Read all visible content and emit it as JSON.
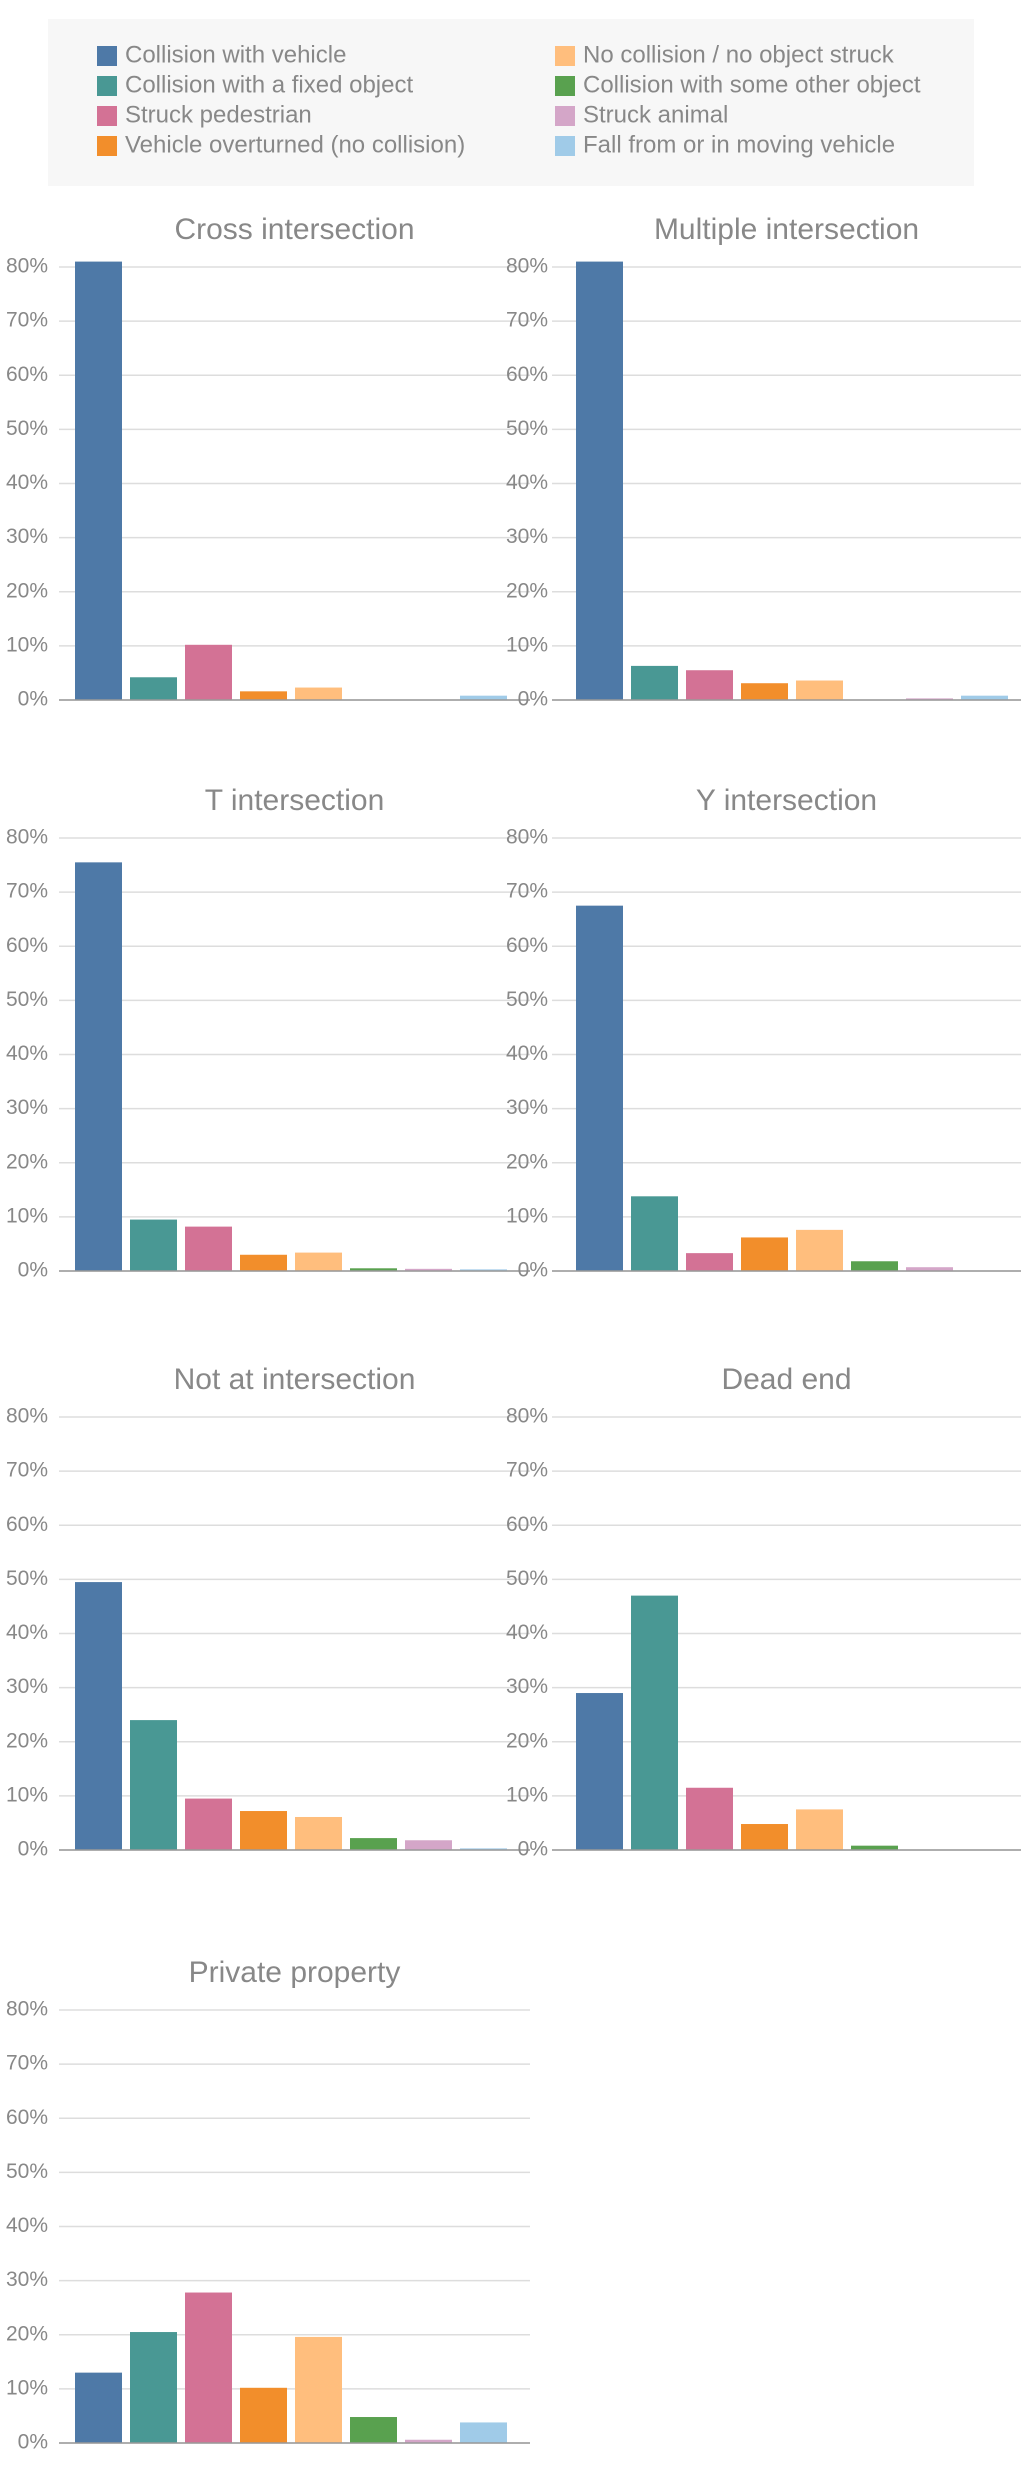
{
  "legend": {
    "items": [
      {
        "name": "Collision with vehicle",
        "color": "#4e79a7"
      },
      {
        "name": "Collision with a fixed object",
        "color": "#499894"
      },
      {
        "name": "Struck pedestrian",
        "color": "#d37295"
      },
      {
        "name": "Vehicle overturned (no collision)",
        "color": "#f28e2b"
      },
      {
        "name": "No collision / no object struck",
        "color": "#ffbe7d"
      },
      {
        "name": "Collision with some other object",
        "color": "#59a14f"
      },
      {
        "name": "Struck animal",
        "color": "#d4a6c8"
      },
      {
        "name": "Fall from or in moving vehicle",
        "color": "#a0cbe8"
      }
    ]
  },
  "chart_data": [
    {
      "type": "bar",
      "title": "Cross intersection",
      "values": [
        81,
        4.2,
        10.2,
        1.6,
        2.3,
        0,
        0,
        0.8
      ],
      "ylim": [
        0,
        80
      ],
      "yticks": [
        {
          "value": 0,
          "label": "0%"
        },
        {
          "value": 10,
          "label": "10%"
        },
        {
          "value": 20,
          "label": "20%"
        },
        {
          "value": 30,
          "label": "30%"
        },
        {
          "value": 40,
          "label": "40%"
        },
        {
          "value": 50,
          "label": "50%"
        },
        {
          "value": 60,
          "label": "60%"
        },
        {
          "value": 70,
          "label": "70%"
        },
        {
          "value": 80,
          "label": "80%"
        }
      ],
      "grid": true
    },
    {
      "type": "bar",
      "title": "Multiple intersection",
      "values": [
        81,
        6.3,
        5.5,
        3.1,
        3.6,
        0,
        0.3,
        0.8
      ],
      "ylim": [
        0,
        80
      ],
      "yticks": [
        {
          "value": 0,
          "label": "0%"
        },
        {
          "value": 10,
          "label": "10%"
        },
        {
          "value": 20,
          "label": "20%"
        },
        {
          "value": 30,
          "label": "30%"
        },
        {
          "value": 40,
          "label": "40%"
        },
        {
          "value": 50,
          "label": "50%"
        },
        {
          "value": 60,
          "label": "60%"
        },
        {
          "value": 70,
          "label": "70%"
        },
        {
          "value": 80,
          "label": "80%"
        }
      ],
      "grid": true
    },
    {
      "type": "bar",
      "title": "T intersection",
      "values": [
        75.5,
        9.5,
        8.2,
        3.0,
        3.4,
        0.5,
        0.4,
        0.3
      ],
      "ylim": [
        0,
        80
      ],
      "yticks": [
        {
          "value": 0,
          "label": "0%"
        },
        {
          "value": 10,
          "label": "10%"
        },
        {
          "value": 20,
          "label": "20%"
        },
        {
          "value": 30,
          "label": "30%"
        },
        {
          "value": 40,
          "label": "40%"
        },
        {
          "value": 50,
          "label": "50%"
        },
        {
          "value": 60,
          "label": "60%"
        },
        {
          "value": 70,
          "label": "70%"
        },
        {
          "value": 80,
          "label": "80%"
        }
      ],
      "grid": true
    },
    {
      "type": "bar",
      "title": "Y intersection",
      "values": [
        67.5,
        13.8,
        3.3,
        6.2,
        7.6,
        1.8,
        0.7,
        0
      ],
      "ylim": [
        0,
        80
      ],
      "yticks": [
        {
          "value": 0,
          "label": "0%"
        },
        {
          "value": 10,
          "label": "10%"
        },
        {
          "value": 20,
          "label": "20%"
        },
        {
          "value": 30,
          "label": "30%"
        },
        {
          "value": 40,
          "label": "40%"
        },
        {
          "value": 50,
          "label": "50%"
        },
        {
          "value": 60,
          "label": "60%"
        },
        {
          "value": 70,
          "label": "70%"
        },
        {
          "value": 80,
          "label": "80%"
        }
      ],
      "grid": true
    },
    {
      "type": "bar",
      "title": "Not at intersection",
      "values": [
        49.5,
        24,
        9.5,
        7.2,
        6.1,
        2.2,
        1.8,
        0.3
      ],
      "ylim": [
        0,
        80
      ],
      "yticks": [
        {
          "value": 0,
          "label": "0%"
        },
        {
          "value": 10,
          "label": "10%"
        },
        {
          "value": 20,
          "label": "20%"
        },
        {
          "value": 30,
          "label": "30%"
        },
        {
          "value": 40,
          "label": "40%"
        },
        {
          "value": 50,
          "label": "50%"
        },
        {
          "value": 60,
          "label": "60%"
        },
        {
          "value": 70,
          "label": "70%"
        },
        {
          "value": 80,
          "label": "80%"
        }
      ],
      "grid": true
    },
    {
      "type": "bar",
      "title": "Dead end",
      "values": [
        29,
        47,
        11.5,
        4.8,
        7.5,
        0.8,
        0,
        0
      ],
      "ylim": [
        0,
        80
      ],
      "yticks": [
        {
          "value": 0,
          "label": "0%"
        },
        {
          "value": 10,
          "label": "10%"
        },
        {
          "value": 20,
          "label": "20%"
        },
        {
          "value": 30,
          "label": "30%"
        },
        {
          "value": 40,
          "label": "40%"
        },
        {
          "value": 50,
          "label": "50%"
        },
        {
          "value": 60,
          "label": "60%"
        },
        {
          "value": 70,
          "label": "70%"
        },
        {
          "value": 80,
          "label": "80%"
        }
      ],
      "grid": true
    },
    {
      "type": "bar",
      "title": "Private property",
      "values": [
        13,
        20.5,
        27.8,
        10.2,
        19.6,
        4.8,
        0.6,
        3.8
      ],
      "ylim": [
        0,
        80
      ],
      "yticks": [
        {
          "value": 0,
          "label": "0%"
        },
        {
          "value": 10,
          "label": "10%"
        },
        {
          "value": 20,
          "label": "20%"
        },
        {
          "value": 30,
          "label": "30%"
        },
        {
          "value": 40,
          "label": "40%"
        },
        {
          "value": 50,
          "label": "50%"
        },
        {
          "value": 60,
          "label": "60%"
        },
        {
          "value": 70,
          "label": "70%"
        },
        {
          "value": 80,
          "label": "80%"
        }
      ],
      "grid": true
    }
  ]
}
